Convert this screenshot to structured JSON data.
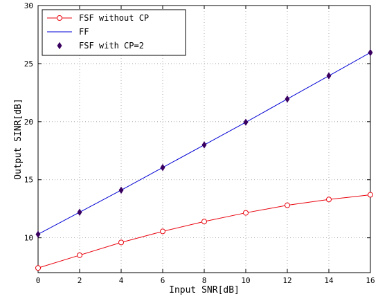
{
  "chart_data": {
    "type": "line",
    "title": "",
    "xlabel": "Input SNR[dB]",
    "ylabel": "Output SINR[dB]",
    "xlim": [
      0,
      16
    ],
    "ylim": [
      7,
      30
    ],
    "xticks": [
      0,
      2,
      4,
      6,
      8,
      10,
      12,
      14,
      16
    ],
    "yticks": [
      10,
      15,
      20,
      25,
      30
    ],
    "grid": true,
    "legend_position": "top-left",
    "series": [
      {
        "name": "FSF without CP",
        "color": "#e8000b",
        "line": true,
        "marker": "open-circle",
        "x": [
          0,
          2,
          4,
          6,
          8,
          10,
          12,
          14,
          16
        ],
        "y": [
          7.4,
          8.5,
          9.6,
          10.55,
          11.4,
          12.15,
          12.8,
          13.3,
          13.7
        ]
      },
      {
        "name": "FF",
        "color": "#0000d4",
        "line": true,
        "marker": "none",
        "x": [
          0,
          2,
          4,
          6,
          8,
          10,
          12,
          14,
          16
        ],
        "y": [
          10.3,
          12.2,
          14.1,
          16.05,
          18.0,
          19.95,
          21.95,
          23.95,
          25.95
        ]
      },
      {
        "name": "FSF with CP=2",
        "color": "#3a0060",
        "line": false,
        "marker": "filled-diamond",
        "x": [
          0,
          2,
          4,
          6,
          8,
          10,
          12,
          14,
          16
        ],
        "y": [
          10.3,
          12.2,
          14.1,
          16.05,
          18.0,
          19.95,
          21.95,
          23.95,
          25.95
        ]
      }
    ]
  }
}
